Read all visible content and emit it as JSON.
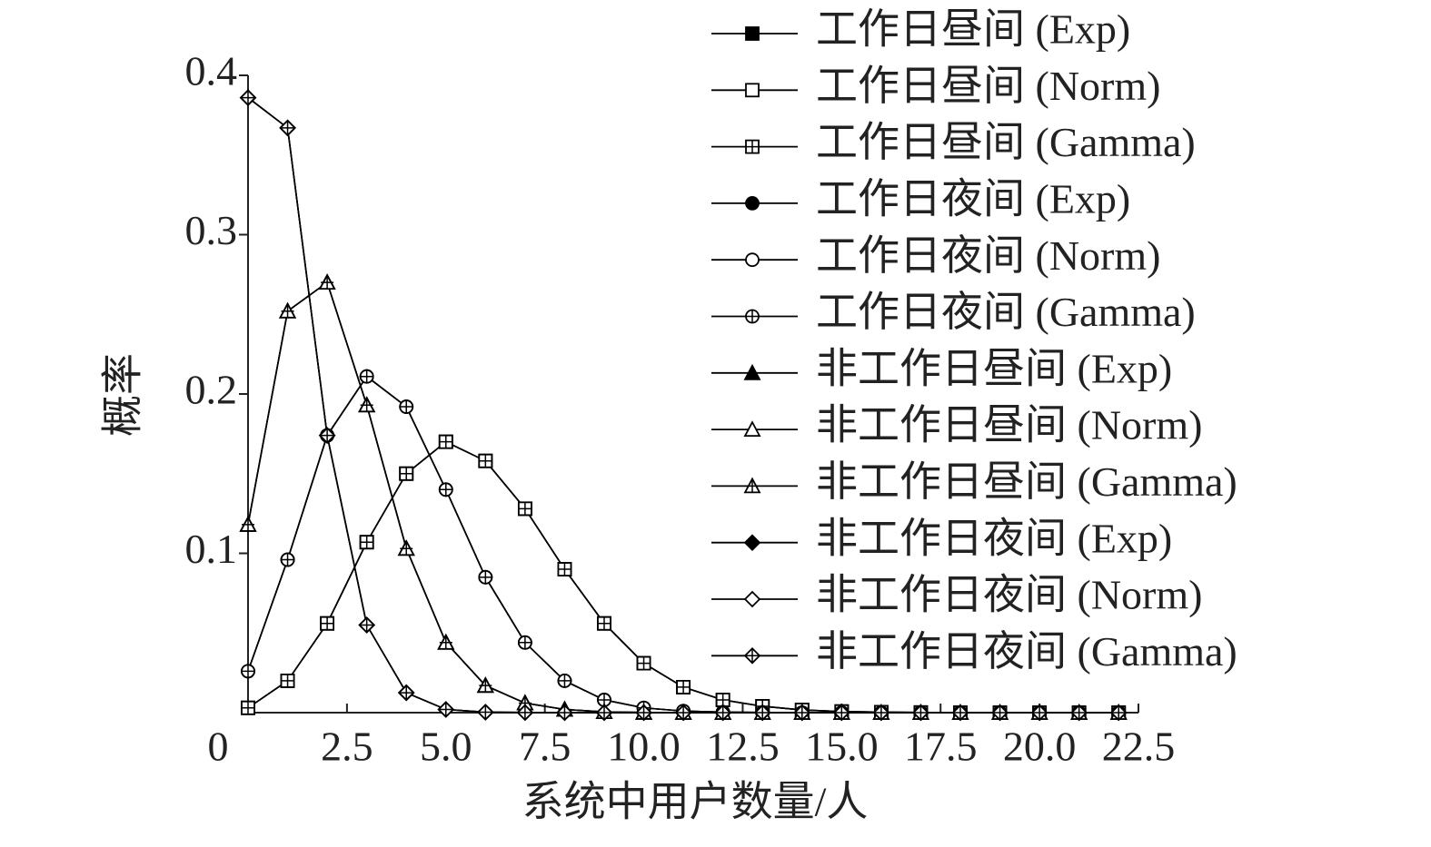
{
  "chart_data": {
    "type": "line",
    "xlabel": "系统中用户数量/人",
    "ylabel": "概率",
    "x": [
      0,
      1,
      2,
      3,
      4,
      5,
      6,
      7,
      8,
      9,
      10,
      11,
      12,
      13,
      14,
      15,
      16,
      17,
      18,
      19,
      20,
      21,
      22
    ],
    "xlim": [
      0,
      22.5
    ],
    "xticks": [
      0,
      2.5,
      {
        "value": 5,
        "label": "5.0"
      },
      7.5,
      {
        "value": 10,
        "label": "10.0"
      },
      12.5,
      {
        "value": 15,
        "label": "15.0"
      },
      17.5,
      {
        "value": 20,
        "label": "20.0"
      },
      22.5
    ],
    "ylim": [
      0,
      0.4
    ],
    "yticks": [
      0.1,
      0.2,
      0.3,
      0.4
    ],
    "series": [
      {
        "name": "工作日昼间 (Exp)",
        "color": "#000000",
        "marker": "square",
        "fill": "filled",
        "values": [
          0.003,
          0.02,
          0.056,
          0.107,
          0.15,
          0.17,
          0.158,
          0.128,
          0.09,
          0.056,
          0.031,
          0.016,
          0.008,
          0.004,
          0.0017,
          0.0007,
          0.0003,
          0.0001,
          0,
          0,
          0,
          0,
          0
        ]
      },
      {
        "name": "工作日昼间 (Norm)",
        "color": "#000000",
        "marker": "square",
        "fill": "open",
        "values": [
          0.003,
          0.02,
          0.056,
          0.107,
          0.15,
          0.17,
          0.158,
          0.128,
          0.09,
          0.056,
          0.031,
          0.016,
          0.008,
          0.004,
          0.0017,
          0.0007,
          0.0003,
          0.0001,
          0,
          0,
          0,
          0,
          0
        ]
      },
      {
        "name": "工作日昼间 (Gamma)",
        "color": "#000000",
        "marker": "square",
        "fill": "cross",
        "values": [
          0.003,
          0.02,
          0.056,
          0.107,
          0.15,
          0.17,
          0.158,
          0.128,
          0.09,
          0.056,
          0.031,
          0.016,
          0.008,
          0.004,
          0.0017,
          0.0007,
          0.0003,
          0.0001,
          0,
          0,
          0,
          0,
          0
        ]
      },
      {
        "name": "工作日夜间 (Exp)",
        "color": "#000000",
        "marker": "circle",
        "fill": "filled",
        "values": [
          0.026,
          0.096,
          0.174,
          0.211,
          0.192,
          0.14,
          0.085,
          0.044,
          0.02,
          0.008,
          0.003,
          0.001,
          0.0003,
          0.0001,
          0,
          0,
          0,
          0,
          0,
          0,
          0,
          0,
          0
        ]
      },
      {
        "name": "工作日夜间 (Norm)",
        "color": "#000000",
        "marker": "circle",
        "fill": "open",
        "values": [
          0.026,
          0.096,
          0.174,
          0.211,
          0.192,
          0.14,
          0.085,
          0.044,
          0.02,
          0.008,
          0.003,
          0.001,
          0.0003,
          0.0001,
          0,
          0,
          0,
          0,
          0,
          0,
          0,
          0,
          0
        ]
      },
      {
        "name": "工作日夜间 (Gamma)",
        "color": "#000000",
        "marker": "circle",
        "fill": "cross",
        "values": [
          0.026,
          0.096,
          0.174,
          0.211,
          0.192,
          0.14,
          0.085,
          0.044,
          0.02,
          0.008,
          0.003,
          0.001,
          0.0003,
          0.0001,
          0,
          0,
          0,
          0,
          0,
          0,
          0,
          0,
          0
        ]
      },
      {
        "name": "非工作日昼间 (Exp)",
        "color": "#000000",
        "marker": "triangle",
        "fill": "filled",
        "values": [
          0.118,
          0.252,
          0.27,
          0.193,
          0.103,
          0.044,
          0.017,
          0.006,
          0.002,
          0.0005,
          0.0001,
          0,
          0,
          0,
          0,
          0,
          0,
          0,
          0,
          0,
          0,
          0,
          0
        ]
      },
      {
        "name": "非工作日昼间 (Norm)",
        "color": "#000000",
        "marker": "triangle",
        "fill": "open",
        "values": [
          0.118,
          0.252,
          0.27,
          0.193,
          0.103,
          0.044,
          0.017,
          0.006,
          0.002,
          0.0005,
          0.0001,
          0,
          0,
          0,
          0,
          0,
          0,
          0,
          0,
          0,
          0,
          0,
          0
        ]
      },
      {
        "name": "非工作日昼间 (Gamma)",
        "color": "#000000",
        "marker": "triangle",
        "fill": "cross",
        "values": [
          0.118,
          0.252,
          0.27,
          0.193,
          0.103,
          0.044,
          0.017,
          0.006,
          0.002,
          0.0005,
          0.0001,
          0,
          0,
          0,
          0,
          0,
          0,
          0,
          0,
          0,
          0,
          0,
          0
        ]
      },
      {
        "name": "非工作日夜间 (Exp)",
        "color": "#000000",
        "marker": "diamond",
        "fill": "filled",
        "values": [
          0.386,
          0.367,
          0.174,
          0.055,
          0.0125,
          0.002,
          0.0003,
          0.0001,
          0,
          0,
          0,
          0,
          0,
          0,
          0,
          0,
          0,
          0,
          0,
          0,
          0,
          0,
          0
        ]
      },
      {
        "name": "非工作日夜间 (Norm)",
        "color": "#000000",
        "marker": "diamond",
        "fill": "open",
        "values": [
          0.386,
          0.367,
          0.174,
          0.055,
          0.0125,
          0.002,
          0.0003,
          0.0001,
          0,
          0,
          0,
          0,
          0,
          0,
          0,
          0,
          0,
          0,
          0,
          0,
          0,
          0,
          0
        ]
      },
      {
        "name": "非工作日夜间 (Gamma)",
        "color": "#000000",
        "marker": "diamond",
        "fill": "cross",
        "values": [
          0.386,
          0.367,
          0.174,
          0.055,
          0.0125,
          0.002,
          0.0003,
          0.0001,
          0,
          0,
          0,
          0,
          0,
          0,
          0,
          0,
          0,
          0,
          0,
          0,
          0,
          0,
          0
        ]
      }
    ]
  }
}
